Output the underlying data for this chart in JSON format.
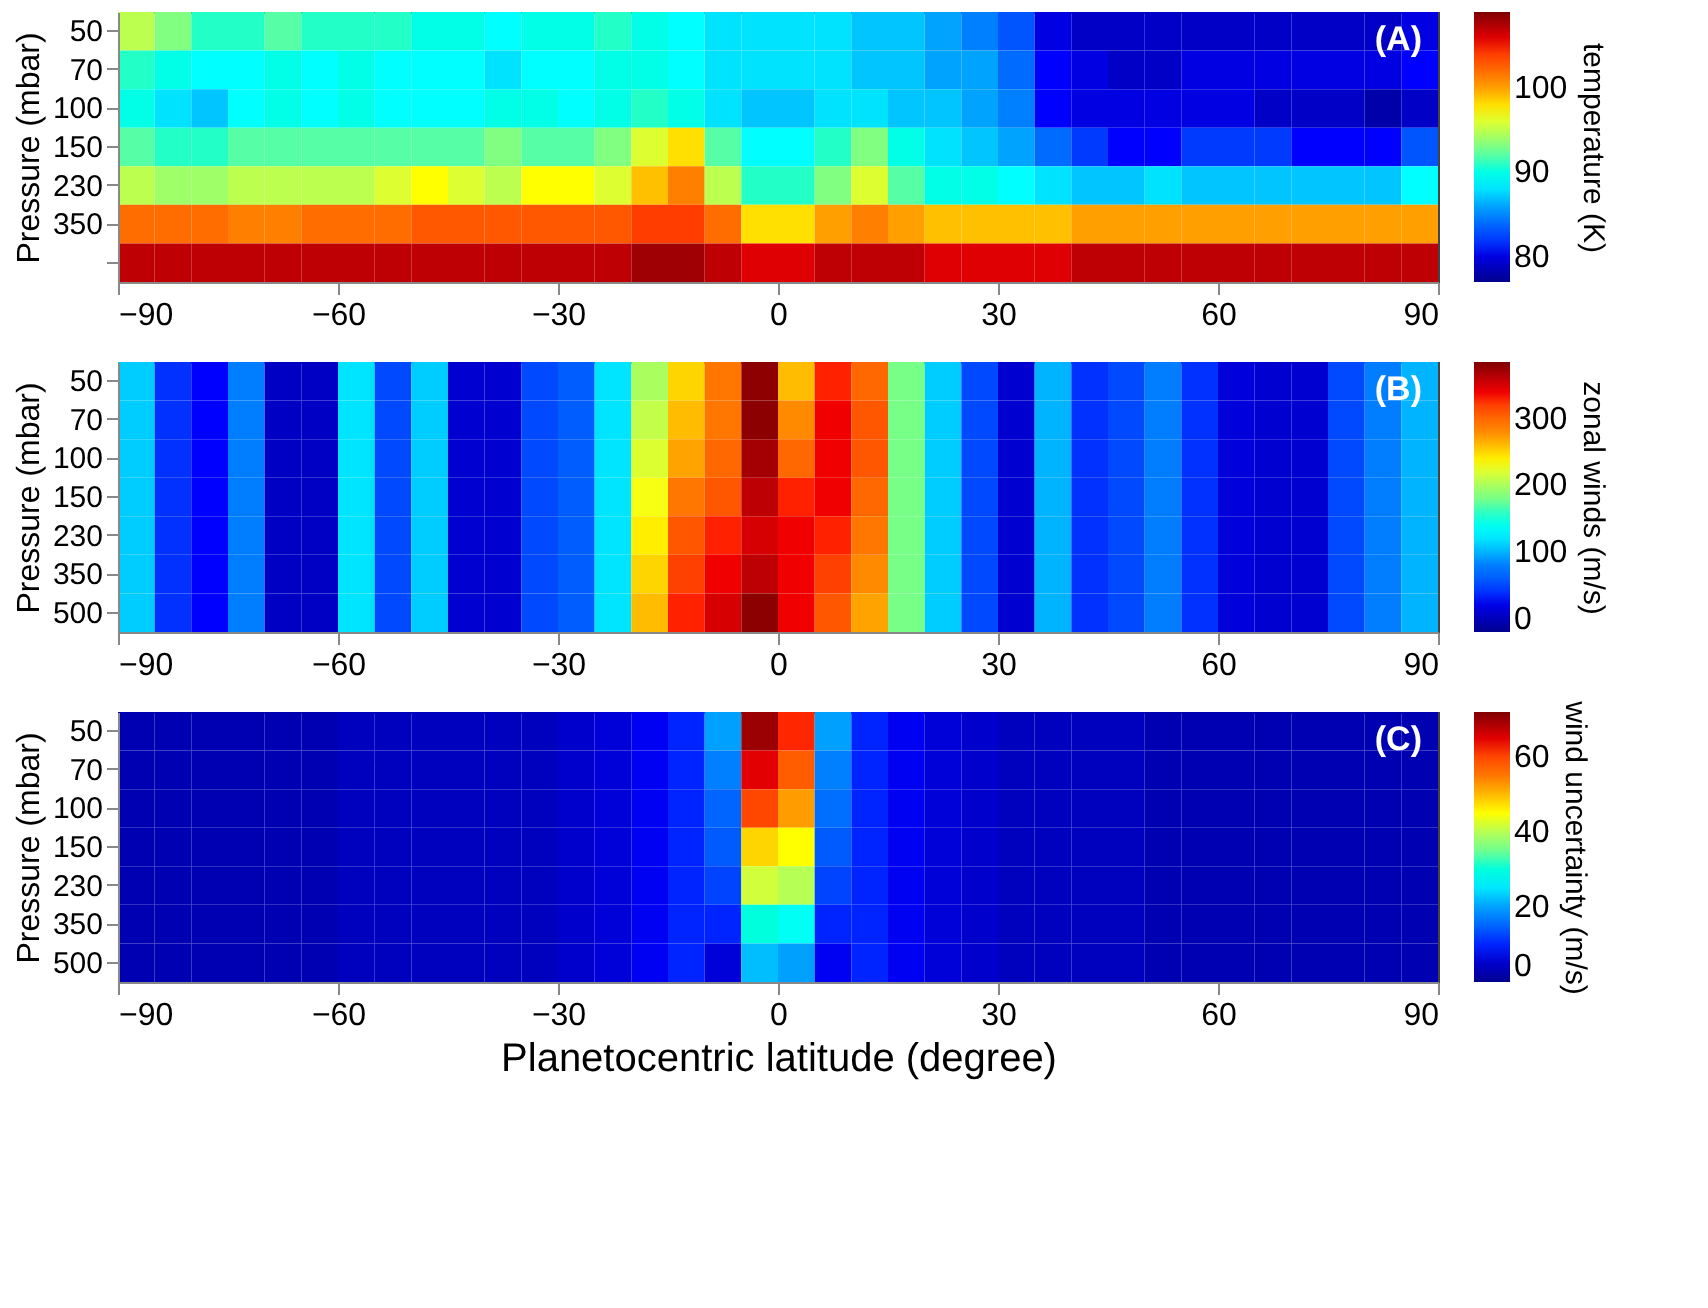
{
  "chart_data": [
    {
      "type": "heatmap",
      "ylabel": "Pressure (mbar)",
      "clabel": "temperature (K)",
      "annotations": [
        "(A)"
      ],
      "grid": false,
      "x": [
        -87.5,
        -82.5,
        -77.5,
        -72.5,
        -67.5,
        -62.5,
        -57.5,
        -52.5,
        -47.5,
        -42.5,
        -37.5,
        -32.5,
        -27.5,
        -22.5,
        -17.5,
        -12.5,
        -7.5,
        -2.5,
        2.5,
        7.5,
        12.5,
        17.5,
        22.5,
        27.5,
        32.5,
        37.5,
        42.5,
        47.5,
        52.5,
        57.5,
        62.5,
        67.5,
        72.5,
        77.5,
        82.5,
        87.5
      ],
      "xlim": [
        -90,
        90
      ],
      "xticks": [
        -90,
        -60,
        -30,
        0,
        30,
        60,
        90
      ],
      "y_categories": [
        "50",
        "70",
        "100",
        "150",
        "230",
        "350",
        null
      ],
      "clim": [
        77,
        109
      ],
      "cticks": [
        80,
        90,
        100
      ],
      "cells": [
        [
          95,
          93,
          91,
          91,
          92,
          91,
          91,
          91,
          90,
          90,
          89,
          90,
          90,
          91,
          90,
          89,
          88,
          88,
          88,
          88,
          87,
          87,
          86,
          85,
          83,
          80,
          79,
          79,
          79,
          79,
          79,
          79,
          79,
          79,
          79,
          80
        ],
        [
          91,
          90,
          89,
          89,
          90,
          89,
          90,
          89,
          89,
          89,
          88,
          89,
          89,
          90,
          90,
          89,
          88,
          88,
          88,
          88,
          87,
          87,
          86,
          86,
          84,
          81,
          80,
          79,
          79,
          80,
          80,
          80,
          80,
          80,
          80,
          81
        ],
        [
          90,
          88,
          87,
          89,
          90,
          89,
          90,
          89,
          89,
          89,
          90,
          90,
          89,
          90,
          91,
          90,
          88,
          87,
          87,
          88,
          88,
          87,
          87,
          86,
          85,
          81,
          80,
          80,
          80,
          80,
          80,
          79,
          79,
          79,
          78,
          79
        ],
        [
          92,
          91,
          91,
          92,
          92,
          92,
          92,
          92,
          92,
          92,
          93,
          92,
          92,
          93,
          96,
          98,
          92,
          89,
          89,
          91,
          93,
          90,
          88,
          87,
          86,
          84,
          82,
          81,
          81,
          82,
          82,
          82,
          81,
          81,
          81,
          83
        ],
        [
          95,
          94,
          94,
          95,
          95,
          95,
          95,
          96,
          97,
          96,
          95,
          97,
          97,
          96,
          99,
          101,
          95,
          91,
          91,
          93,
          96,
          92,
          90,
          90,
          89,
          88,
          87,
          87,
          88,
          87,
          87,
          87,
          87,
          87,
          87,
          89
        ],
        [
          102,
          102,
          102,
          101,
          101,
          102,
          102,
          102,
          103,
          103,
          103,
          103,
          103,
          103,
          104,
          104,
          102,
          98,
          98,
          100,
          101,
          100,
          99,
          99,
          99,
          99,
          100,
          100,
          100,
          100,
          100,
          100,
          100,
          100,
          100,
          100
        ],
        [
          107,
          107,
          107,
          107,
          107,
          107,
          107,
          107,
          107,
          107,
          107,
          107,
          107,
          107,
          108,
          108,
          107,
          106,
          106,
          107,
          107,
          107,
          106,
          106,
          106,
          106,
          107,
          107,
          107,
          107,
          107,
          107,
          107,
          107,
          107,
          107
        ]
      ]
    },
    {
      "type": "heatmap",
      "ylabel": "Pressure (mbar)",
      "clabel": "zonal winds (m/s)",
      "annotations": [
        "(B)"
      ],
      "grid": false,
      "x": [
        -87.5,
        -82.5,
        -77.5,
        -72.5,
        -67.5,
        -62.5,
        -57.5,
        -52.5,
        -47.5,
        -42.5,
        -37.5,
        -32.5,
        -27.5,
        -22.5,
        -17.5,
        -12.5,
        -7.5,
        -2.5,
        2.5,
        7.5,
        12.5,
        17.5,
        22.5,
        27.5,
        32.5,
        37.5,
        42.5,
        47.5,
        52.5,
        57.5,
        62.5,
        67.5,
        72.5,
        77.5,
        82.5,
        87.5
      ],
      "xlim": [
        -90,
        90
      ],
      "xticks": [
        -90,
        -60,
        -30,
        0,
        30,
        60,
        90
      ],
      "y_categories": [
        "50",
        "70",
        "100",
        "150",
        "230",
        "350",
        "500"
      ],
      "clim": [
        -20,
        385
      ],
      "cticks": [
        0,
        100,
        200,
        300
      ],
      "cells": [
        [
          110,
          40,
          30,
          80,
          5,
          5,
          120,
          50,
          110,
          10,
          10,
          50,
          60,
          120,
          200,
          250,
          290,
          380,
          260,
          330,
          300,
          180,
          110,
          50,
          10,
          100,
          40,
          50,
          80,
          40,
          15,
          10,
          10,
          50,
          80,
          100
        ],
        [
          110,
          40,
          30,
          80,
          5,
          5,
          120,
          50,
          110,
          10,
          10,
          50,
          60,
          120,
          210,
          260,
          290,
          380,
          280,
          340,
          310,
          180,
          110,
          50,
          10,
          100,
          40,
          50,
          80,
          40,
          15,
          10,
          10,
          50,
          80,
          100
        ],
        [
          110,
          40,
          30,
          80,
          5,
          5,
          120,
          50,
          110,
          10,
          10,
          50,
          60,
          120,
          220,
          270,
          300,
          370,
          300,
          340,
          310,
          180,
          110,
          50,
          10,
          100,
          40,
          50,
          80,
          40,
          15,
          10,
          10,
          50,
          80,
          100
        ],
        [
          110,
          40,
          30,
          80,
          5,
          5,
          120,
          50,
          110,
          10,
          10,
          50,
          60,
          120,
          230,
          290,
          310,
          360,
          330,
          340,
          300,
          180,
          110,
          50,
          10,
          100,
          40,
          50,
          80,
          40,
          15,
          10,
          10,
          50,
          80,
          100
        ],
        [
          110,
          40,
          30,
          80,
          5,
          5,
          120,
          50,
          110,
          10,
          10,
          50,
          60,
          120,
          240,
          310,
          330,
          350,
          340,
          330,
          290,
          180,
          110,
          50,
          10,
          100,
          40,
          50,
          80,
          40,
          15,
          10,
          10,
          50,
          80,
          100
        ],
        [
          110,
          40,
          30,
          80,
          5,
          5,
          120,
          50,
          110,
          10,
          10,
          50,
          60,
          120,
          250,
          320,
          340,
          360,
          340,
          320,
          280,
          180,
          110,
          50,
          10,
          100,
          40,
          50,
          80,
          40,
          15,
          10,
          10,
          50,
          80,
          100
        ],
        [
          110,
          40,
          30,
          80,
          5,
          5,
          120,
          50,
          110,
          10,
          10,
          50,
          60,
          120,
          260,
          330,
          350,
          380,
          340,
          310,
          270,
          180,
          110,
          50,
          10,
          100,
          40,
          50,
          80,
          40,
          15,
          10,
          10,
          50,
          80,
          100
        ]
      ]
    },
    {
      "type": "heatmap",
      "xlabel": "Planetocentric latitude (degree)",
      "ylabel": "Pressure (mbar)",
      "clabel": "wind uncertainty (m/s)",
      "annotations": [
        "(C)"
      ],
      "grid": false,
      "x": [
        -87.5,
        -82.5,
        -77.5,
        -72.5,
        -67.5,
        -62.5,
        -57.5,
        -52.5,
        -47.5,
        -42.5,
        -37.5,
        -32.5,
        -27.5,
        -22.5,
        -17.5,
        -12.5,
        -7.5,
        -2.5,
        2.5,
        7.5,
        12.5,
        17.5,
        22.5,
        27.5,
        32.5,
        37.5,
        42.5,
        47.5,
        52.5,
        57.5,
        62.5,
        67.5,
        72.5,
        77.5,
        82.5,
        87.5
      ],
      "xlim": [
        -90,
        90
      ],
      "xticks": [
        -90,
        -60,
        -30,
        0,
        30,
        60,
        90
      ],
      "y_categories": [
        "50",
        "70",
        "100",
        "150",
        "230",
        "350",
        "500"
      ],
      "clim": [
        0,
        72
      ],
      "cticks": [
        0,
        20,
        40,
        60
      ],
      "cells": [
        [
          3,
          3,
          3,
          3,
          3,
          3,
          4,
          4,
          4,
          4,
          4,
          4,
          5,
          6,
          8,
          10,
          20,
          70,
          62,
          20,
          10,
          8,
          6,
          5,
          4,
          4,
          4,
          4,
          3,
          3,
          3,
          3,
          3,
          3,
          3,
          3
        ],
        [
          3,
          3,
          3,
          3,
          3,
          3,
          4,
          4,
          4,
          4,
          4,
          4,
          5,
          6,
          8,
          10,
          18,
          65,
          58,
          18,
          10,
          8,
          6,
          5,
          4,
          4,
          4,
          4,
          3,
          3,
          3,
          3,
          3,
          3,
          3,
          3
        ],
        [
          3,
          3,
          3,
          3,
          3,
          3,
          4,
          4,
          4,
          4,
          4,
          4,
          5,
          6,
          8,
          10,
          15,
          60,
          52,
          16,
          10,
          8,
          6,
          5,
          4,
          4,
          4,
          4,
          3,
          3,
          3,
          3,
          3,
          3,
          3,
          3
        ],
        [
          3,
          3,
          3,
          3,
          3,
          3,
          4,
          4,
          4,
          4,
          4,
          4,
          5,
          6,
          8,
          10,
          14,
          48,
          45,
          14,
          10,
          8,
          6,
          5,
          4,
          4,
          4,
          4,
          3,
          3,
          3,
          3,
          3,
          3,
          3,
          3
        ],
        [
          3,
          3,
          3,
          3,
          3,
          3,
          4,
          4,
          4,
          4,
          4,
          4,
          5,
          6,
          8,
          10,
          12,
          42,
          40,
          12,
          10,
          8,
          6,
          5,
          4,
          4,
          4,
          4,
          3,
          3,
          3,
          3,
          3,
          3,
          3,
          3
        ],
        [
          3,
          3,
          3,
          3,
          3,
          3,
          4,
          4,
          4,
          4,
          4,
          4,
          5,
          6,
          8,
          10,
          10,
          30,
          28,
          10,
          10,
          8,
          6,
          5,
          4,
          4,
          4,
          4,
          3,
          3,
          3,
          3,
          3,
          3,
          3,
          3
        ],
        [
          3,
          3,
          3,
          3,
          3,
          3,
          4,
          4,
          4,
          4,
          4,
          4,
          5,
          6,
          8,
          10,
          6,
          22,
          20,
          8,
          10,
          8,
          6,
          5,
          4,
          4,
          4,
          4,
          3,
          3,
          3,
          3,
          3,
          3,
          3,
          3
        ]
      ]
    }
  ]
}
